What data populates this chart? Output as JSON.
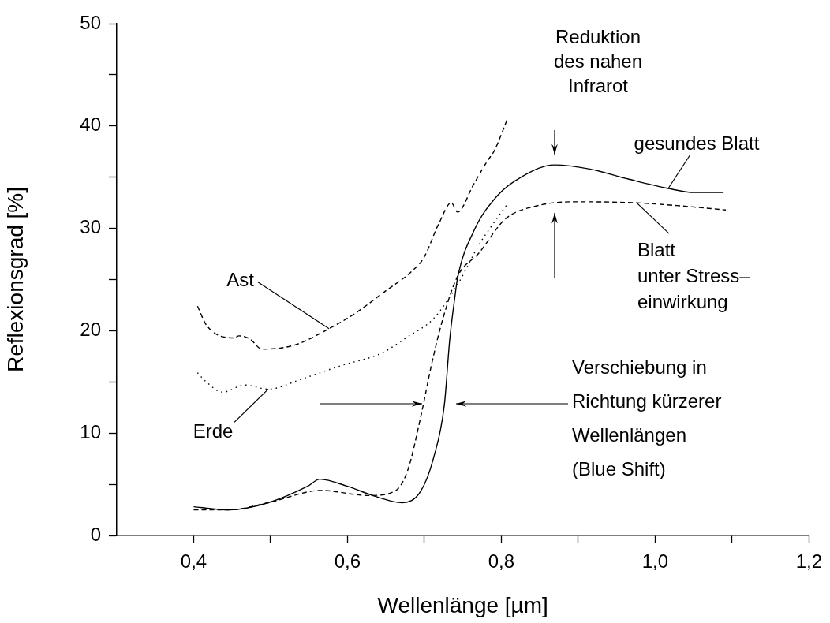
{
  "chart_data": {
    "type": "line",
    "xlabel": "Wellenlänge [µm]",
    "ylabel": "Reflexionsgrad [%]",
    "xlim": [
      0.3,
      1.2
    ],
    "ylim": [
      0,
      50
    ],
    "xticks": [
      {
        "value": 0.4,
        "label": "0,4"
      },
      {
        "value": 0.5,
        "label": null
      },
      {
        "value": 0.6,
        "label": "0,6"
      },
      {
        "value": 0.7,
        "label": null
      },
      {
        "value": 0.8,
        "label": "0,8"
      },
      {
        "value": 0.9,
        "label": null
      },
      {
        "value": 1.0,
        "label": "1,0"
      },
      {
        "value": 1.1,
        "label": null
      },
      {
        "value": 1.2,
        "label": "1,2"
      }
    ],
    "yticks": [
      0,
      {
        "value": 5,
        "label": null
      },
      10,
      {
        "value": 15,
        "label": null
      },
      20,
      {
        "value": 25,
        "label": null
      },
      30,
      {
        "value": 35,
        "label": null
      },
      40,
      {
        "value": 45,
        "label": null
      },
      50
    ],
    "grid": false,
    "legend": false,
    "marker": "none",
    "series": [
      {
        "color": "#000000",
        "line_style": "solid",
        "x": [
          0.4,
          0.446,
          0.497,
          0.548,
          0.564,
          0.6,
          0.637,
          0.671,
          0.695,
          0.712,
          0.726,
          0.733,
          0.74,
          0.743,
          0.764,
          0.795,
          0.828,
          0.869,
          0.915,
          0.966,
          1.017,
          1.051,
          1.089
        ],
        "values": [
          2.8,
          2.5,
          3.2,
          4.8,
          5.5,
          4.8,
          3.8,
          3.2,
          4.3,
          7.6,
          12.8,
          19.2,
          23.5,
          25.1,
          29.7,
          33.2,
          35.1,
          36.2,
          35.8,
          34.8,
          33.9,
          33.5,
          33.5
        ]
      },
      {
        "color": "#000000",
        "line_style": "dashed",
        "x": [
          0.4,
          0.446,
          0.497,
          0.566,
          0.627,
          0.661,
          0.678,
          0.695,
          0.709,
          0.723,
          0.743,
          0.771,
          0.805,
          0.846,
          0.897,
          0.976,
          1.033,
          1.092
        ],
        "values": [
          2.5,
          2.5,
          3.2,
          4.4,
          3.9,
          4.3,
          6.3,
          11.5,
          16.6,
          20.9,
          25.3,
          27.6,
          30.9,
          32.2,
          32.6,
          32.5,
          32.2,
          31.8
        ]
      },
      {
        "color": "#000000",
        "line_style": "dashed",
        "x": [
          0.405,
          0.417,
          0.453,
          0.459,
          0.473,
          0.489,
          0.531,
          0.576,
          0.61,
          0.648,
          0.685,
          0.699,
          0.719,
          0.735,
          0.743,
          0.764,
          0.782,
          0.791,
          0.808
        ],
        "values": [
          22.4,
          20.5,
          19.3,
          19.5,
          19.2,
          18.2,
          18.6,
          20.2,
          21.7,
          23.8,
          25.9,
          27.1,
          30.5,
          32.5,
          31.6,
          34.3,
          36.6,
          37.6,
          40.7
        ]
      },
      {
        "color": "#000000",
        "line_style": "dotted",
        "x": [
          0.405,
          0.415,
          0.438,
          0.466,
          0.497,
          0.541,
          0.592,
          0.644,
          0.678,
          0.712,
          0.743,
          0.771,
          0.787,
          0.808
        ],
        "values": [
          15.9,
          15.1,
          14.0,
          14.7,
          14.3,
          15.3,
          16.6,
          17.8,
          19.4,
          21.2,
          24.5,
          28.4,
          30.2,
          32.4
        ]
      }
    ],
    "annotations": [
      {
        "text": "Ast",
        "x": 0.576,
        "y": 20.2
      },
      {
        "text": "Erde",
        "x": 0.497,
        "y": 14.3
      },
      {
        "text": "gesundes Blatt",
        "x": 1.017,
        "y": 33.9
      },
      {
        "text": "Blatt\nunter Stress–\neinwirkung",
        "x": 0.976,
        "y": 32.5
      },
      "Reduktion\ndes nahen\nInfrarot",
      "Verschiebung in\nRichtung kürzerer\nWellenlängen\n(Blue Shift)"
    ]
  }
}
